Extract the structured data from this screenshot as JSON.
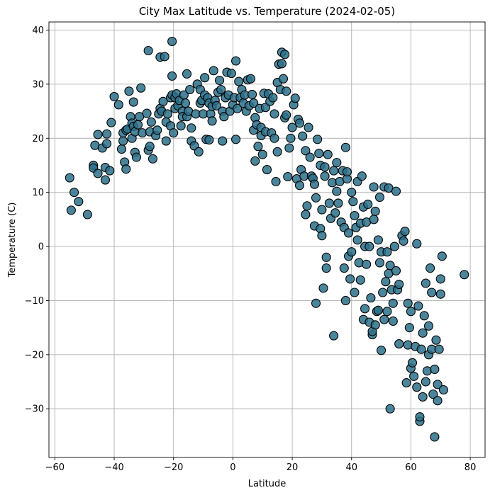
{
  "chart_data": {
    "type": "scatter",
    "title": "City Max Latitude vs. Temperature (2024-02-05)",
    "xlabel": "Latitude",
    "ylabel": "Temperature (C)",
    "xlim": [
      -62,
      85
    ],
    "ylim": [
      -39,
      41.5
    ],
    "xticks": [
      -60,
      -40,
      -20,
      0,
      20,
      40,
      60,
      80
    ],
    "yticks": [
      -30,
      -20,
      -10,
      0,
      10,
      20,
      30,
      40
    ],
    "grid": true,
    "marker_color": "#2b7089",
    "marker_edge_color": "#000000",
    "points": [
      [
        -55,
        12.7
      ],
      [
        -54.5,
        6.7
      ],
      [
        -53.5,
        10
      ],
      [
        -52,
        8.3
      ],
      [
        -49,
        5.9
      ],
      [
        -47,
        15
      ],
      [
        -47,
        14.5
      ],
      [
        -46.5,
        18.7
      ],
      [
        -45.5,
        20.7
      ],
      [
        -45.5,
        13.5
      ],
      [
        -44,
        18.2
      ],
      [
        -43,
        12.3
      ],
      [
        -43,
        14.6
      ],
      [
        -42.5,
        19
      ],
      [
        -42.5,
        20.8
      ],
      [
        -41.5,
        14
      ],
      [
        -41,
        22.9
      ],
      [
        -40,
        27.7
      ],
      [
        -38.5,
        26.2
      ],
      [
        -37.5,
        18
      ],
      [
        -37,
        19.5
      ],
      [
        -37,
        21
      ],
      [
        -36.5,
        15.6
      ],
      [
        -36,
        21.5
      ],
      [
        -36,
        14.3
      ],
      [
        -35.5,
        21.7
      ],
      [
        -35,
        28.7
      ],
      [
        -34.5,
        24
      ],
      [
        -34,
        22.8
      ],
      [
        -34,
        20
      ],
      [
        -33.5,
        26.7
      ],
      [
        -33.5,
        22.2
      ],
      [
        -33,
        21.2
      ],
      [
        -33,
        17.4
      ],
      [
        -32.5,
        16.5
      ],
      [
        -32,
        22.5
      ],
      [
        -31.5,
        24
      ],
      [
        -31,
        29.3
      ],
      [
        -30.5,
        21
      ],
      [
        -29,
        24.6
      ],
      [
        -28.5,
        36.2
      ],
      [
        -28.5,
        17.8
      ],
      [
        -28,
        18.5
      ],
      [
        -28,
        21.2
      ],
      [
        -27.5,
        23
      ],
      [
        -27,
        16.2
      ],
      [
        -26,
        20.5
      ],
      [
        -25.5,
        21.5
      ],
      [
        -25,
        24.5
      ],
      [
        -24.5,
        25.5
      ],
      [
        -24.5,
        35
      ],
      [
        -24,
        25
      ],
      [
        -23.5,
        26.8
      ],
      [
        -23,
        35.1
      ],
      [
        -22.5,
        23
      ],
      [
        -22.5,
        19.5
      ],
      [
        -22,
        24.5
      ],
      [
        -21,
        27.5
      ],
      [
        -21,
        22.3
      ],
      [
        -20.5,
        31.5
      ],
      [
        -20.5,
        37.9
      ],
      [
        -20.5,
        28
      ],
      [
        -20,
        21
      ],
      [
        -19.5,
        25.5
      ],
      [
        -19.5,
        27.5
      ],
      [
        -19,
        28.2
      ],
      [
        -18.5,
        26
      ],
      [
        -18,
        27
      ],
      [
        -17.5,
        22.3
      ],
      [
        -17,
        25
      ],
      [
        -17,
        24
      ],
      [
        -16.5,
        28
      ],
      [
        -16,
        26.5
      ],
      [
        -15.5,
        24
      ],
      [
        -15.5,
        31.9
      ],
      [
        -15,
        25
      ],
      [
        -14.5,
        29
      ],
      [
        -14,
        21.9
      ],
      [
        -14,
        19.5
      ],
      [
        -13,
        18.6
      ],
      [
        -12.5,
        24.5
      ],
      [
        -12,
        30
      ],
      [
        -11.5,
        17.5
      ],
      [
        -11,
        26.5
      ],
      [
        -11,
        29
      ],
      [
        -10.5,
        27
      ],
      [
        -10,
        24.5
      ],
      [
        -9.5,
        31.2
      ],
      [
        -9.5,
        28
      ],
      [
        -9,
        19.8
      ],
      [
        -8.5,
        27.5
      ],
      [
        -8,
        26.5
      ],
      [
        -8,
        19.7
      ],
      [
        -7.5,
        24.5
      ],
      [
        -7,
        25.9
      ],
      [
        -7,
        23.2
      ],
      [
        -6.5,
        32.5
      ],
      [
        -6,
        27
      ],
      [
        -5.5,
        26
      ],
      [
        -5,
        28.5
      ],
      [
        -4.5,
        30.7
      ],
      [
        -4,
        29
      ],
      [
        -3.5,
        19.5
      ],
      [
        -3.5,
        25
      ],
      [
        -3,
        24
      ],
      [
        -2.5,
        27.5
      ],
      [
        -2,
        32.2
      ],
      [
        -1.5,
        28
      ],
      [
        -1,
        25
      ],
      [
        -0.5,
        32
      ],
      [
        0,
        26.2
      ],
      [
        0.5,
        27.5
      ],
      [
        1,
        34.3
      ],
      [
        1,
        19.8
      ],
      [
        1.5,
        25.5
      ],
      [
        2,
        30.5
      ],
      [
        2.5,
        27.5
      ],
      [
        3,
        29
      ],
      [
        3.5,
        26.5
      ],
      [
        4,
        28
      ],
      [
        4.5,
        25
      ],
      [
        5,
        30.8
      ],
      [
        5.5,
        26
      ],
      [
        6,
        31
      ],
      [
        6.5,
        28.1
      ],
      [
        7,
        26.5
      ],
      [
        7,
        21.5
      ],
      [
        7.5,
        23.8
      ],
      [
        7.5,
        15.8
      ],
      [
        8,
        22.5
      ],
      [
        8.5,
        18.5
      ],
      [
        9,
        25.5
      ],
      [
        9.5,
        22
      ],
      [
        9.5,
        20.5
      ],
      [
        10,
        17
      ],
      [
        10.5,
        28.3
      ],
      [
        11,
        25.7
      ],
      [
        11,
        21.2
      ],
      [
        11.5,
        14.2
      ],
      [
        12,
        28.2
      ],
      [
        12.5,
        26.8
      ],
      [
        13,
        21
      ],
      [
        13.5,
        27.5
      ],
      [
        14,
        24.5
      ],
      [
        14,
        20
      ],
      [
        14.5,
        12
      ],
      [
        15,
        17.5
      ],
      [
        15,
        30.3
      ],
      [
        15.5,
        33.7
      ],
      [
        16,
        29
      ],
      [
        16.5,
        35.9
      ],
      [
        16.5,
        33.8
      ],
      [
        17,
        31
      ],
      [
        17.5,
        23.8
      ],
      [
        17.5,
        35.5
      ],
      [
        18,
        28.7
      ],
      [
        18,
        24.3
      ],
      [
        18.5,
        12.9
      ],
      [
        19,
        18.2
      ],
      [
        19.5,
        20
      ],
      [
        20,
        22
      ],
      [
        20.5,
        26.2
      ],
      [
        21,
        27.4
      ],
      [
        21.5,
        12.5
      ],
      [
        22,
        23.5
      ],
      [
        22.5,
        11.3
      ],
      [
        22.5,
        22.8
      ],
      [
        23,
        14.2
      ],
      [
        23.5,
        20.4
      ],
      [
        24,
        13
      ],
      [
        24.5,
        17.7
      ],
      [
        24.5,
        5.9
      ],
      [
        25,
        7.5
      ],
      [
        25.5,
        22
      ],
      [
        26,
        16.5
      ],
      [
        26.5,
        13
      ],
      [
        27,
        12.6
      ],
      [
        27.5,
        3.8
      ],
      [
        27.5,
        11.5
      ],
      [
        28,
        9
      ],
      [
        28,
        -10.5
      ],
      [
        28.5,
        19.8
      ],
      [
        29,
        17.2
      ],
      [
        29.5,
        3.3
      ],
      [
        29.5,
        15
      ],
      [
        30,
        2
      ],
      [
        30,
        6.8
      ],
      [
        30.5,
        -7.7
      ],
      [
        31,
        14.7
      ],
      [
        31,
        13
      ],
      [
        31.5,
        -2
      ],
      [
        31.5,
        -4
      ],
      [
        32,
        17
      ],
      [
        32.5,
        8
      ],
      [
        33,
        5.2
      ],
      [
        33.5,
        11.8
      ],
      [
        34,
        14
      ],
      [
        34,
        -16.5
      ],
      [
        34.5,
        6.2
      ],
      [
        35,
        15.5
      ],
      [
        35,
        10.2
      ],
      [
        35.5,
        8
      ],
      [
        36,
        12
      ],
      [
        36.5,
        4.5
      ],
      [
        37,
        14
      ],
      [
        37.5,
        3.5
      ],
      [
        37.5,
        -4
      ],
      [
        38,
        -10
      ],
      [
        38,
        18.3
      ],
      [
        38.5,
        12.5
      ],
      [
        38.5,
        13.8
      ],
      [
        39,
        2.5
      ],
      [
        39,
        -1.8
      ],
      [
        39.5,
        -6
      ],
      [
        40,
        -1
      ],
      [
        40,
        10
      ],
      [
        40.5,
        8.3
      ],
      [
        41,
        5.7
      ],
      [
        41,
        -8.5
      ],
      [
        41.5,
        3.5
      ],
      [
        42,
        1.2
      ],
      [
        42,
        12
      ],
      [
        42.5,
        -3
      ],
      [
        43,
        4.3
      ],
      [
        43,
        -6.2
      ],
      [
        43.5,
        13
      ],
      [
        44,
        7.3
      ],
      [
        44,
        -13.5
      ],
      [
        44.5,
        0
      ],
      [
        44.5,
        -11.5
      ],
      [
        45,
        4.5
      ],
      [
        45,
        -3.3
      ],
      [
        45.5,
        7.8
      ],
      [
        46,
        0
      ],
      [
        46,
        -14
      ],
      [
        46.5,
        -9.5
      ],
      [
        47,
        -16.3
      ],
      [
        47,
        -15.7
      ],
      [
        47.5,
        11
      ],
      [
        47.5,
        5
      ],
      [
        48,
        6.5
      ],
      [
        48,
        -14.5
      ],
      [
        48.5,
        -12
      ],
      [
        49,
        1.2
      ],
      [
        49,
        -11.8
      ],
      [
        49.5,
        9.1
      ],
      [
        49.5,
        -3
      ],
      [
        50,
        -19.2
      ],
      [
        50,
        -1
      ],
      [
        50.5,
        -8.5
      ],
      [
        51,
        11
      ],
      [
        51,
        -13.5
      ],
      [
        51.5,
        -6.5
      ],
      [
        52,
        -1
      ],
      [
        52,
        -12
      ],
      [
        52.5,
        10.8
      ],
      [
        52.5,
        -5
      ],
      [
        53,
        -3.5
      ],
      [
        53,
        -30
      ],
      [
        53.5,
        -8
      ],
      [
        54,
        -10.5
      ],
      [
        54,
        -13.8
      ],
      [
        54.5,
        0
      ],
      [
        55,
        10.2
      ],
      [
        55,
        -4.5
      ],
      [
        55.5,
        -8
      ],
      [
        56,
        -7
      ],
      [
        56,
        -18
      ],
      [
        57,
        2
      ],
      [
        57.5,
        1
      ],
      [
        58,
        2.8
      ],
      [
        58.5,
        -25.2
      ],
      [
        59,
        -10.5
      ],
      [
        59,
        -18.2
      ],
      [
        59.5,
        -15
      ],
      [
        60,
        -12
      ],
      [
        60,
        -22.5
      ],
      [
        60.5,
        -21.5
      ],
      [
        61,
        -24
      ],
      [
        61.5,
        -18.5
      ],
      [
        62,
        -26
      ],
      [
        62,
        0.5
      ],
      [
        62.5,
        -11
      ],
      [
        63,
        -32.3
      ],
      [
        63,
        -31.5
      ],
      [
        63.5,
        -19
      ],
      [
        64,
        -27.8
      ],
      [
        64,
        -16
      ],
      [
        64.5,
        -12.8
      ],
      [
        65,
        -6.8
      ],
      [
        65,
        -25
      ],
      [
        65.5,
        -23
      ],
      [
        66,
        -14.7
      ],
      [
        66,
        -20
      ],
      [
        66.5,
        -4
      ],
      [
        67,
        -19
      ],
      [
        67,
        -8.5
      ],
      [
        67.5,
        -27.3
      ],
      [
        68,
        -22.7
      ],
      [
        68,
        -35.2
      ],
      [
        68.5,
        -17.3
      ],
      [
        69,
        -28.5
      ],
      [
        69,
        -25.5
      ],
      [
        69.5,
        -19
      ],
      [
        70,
        -6
      ],
      [
        70,
        -8.8
      ],
      [
        70.5,
        -1.8
      ],
      [
        71,
        -26.5
      ],
      [
        78,
        -5.2
      ]
    ]
  }
}
